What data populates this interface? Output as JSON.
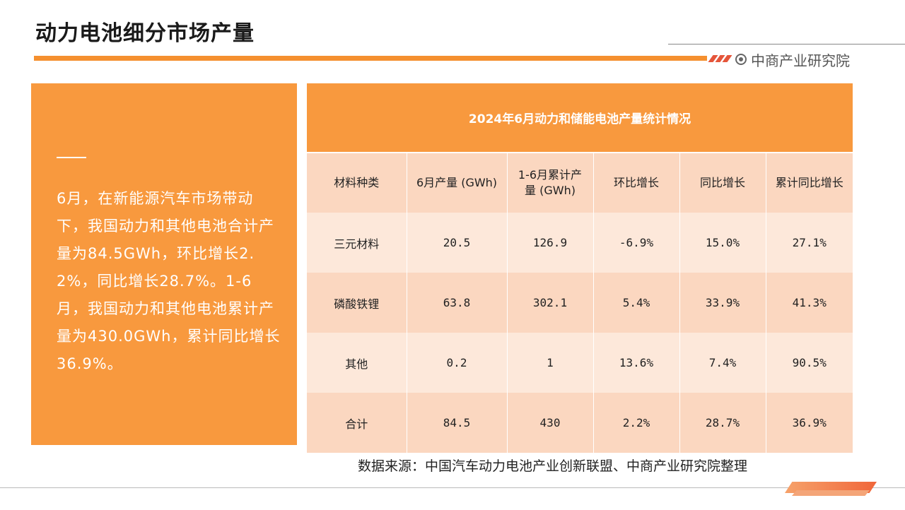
{
  "header": {
    "title": "动力电池细分市场产量",
    "brand": "中商产业研究院"
  },
  "summary": {
    "text": "6月，在新能源汽车市场带动下，我国动力和其他电池合计产量为84.5GWh，环比增长2.2%，同比增长28.7%。1-6月，我国动力和其他电池累计产量为430.0GWh，累计同比增长36.9%。"
  },
  "table": {
    "title": "2024年6月动力和储能电池产量统计情况",
    "columns": [
      "材料种类",
      "6月产量 (GWh)",
      "1-6月累计产量 (GWh)",
      "环比增长",
      "同比增长",
      "累计同比增长"
    ],
    "rows": [
      [
        "三元材料",
        "20.5",
        "126.9",
        "-6.9%",
        "15.0%",
        "27.1%"
      ],
      [
        "磷酸铁锂",
        "63.8",
        "302.1",
        "5.4%",
        "33.9%",
        "41.3%"
      ],
      [
        "其他",
        "0.2",
        "1",
        "13.6%",
        "7.4%",
        "90.5%"
      ],
      [
        "合计",
        "84.5",
        "430",
        "2.2%",
        "28.7%",
        "36.9%"
      ]
    ]
  },
  "footer": {
    "source": "数据来源：中国汽车动力电池产业创新联盟、中商产业研究院整理"
  },
  "colors": {
    "accent": "#f8993e",
    "header_row": "#fbd7c0",
    "row_light": "#fde8da"
  }
}
